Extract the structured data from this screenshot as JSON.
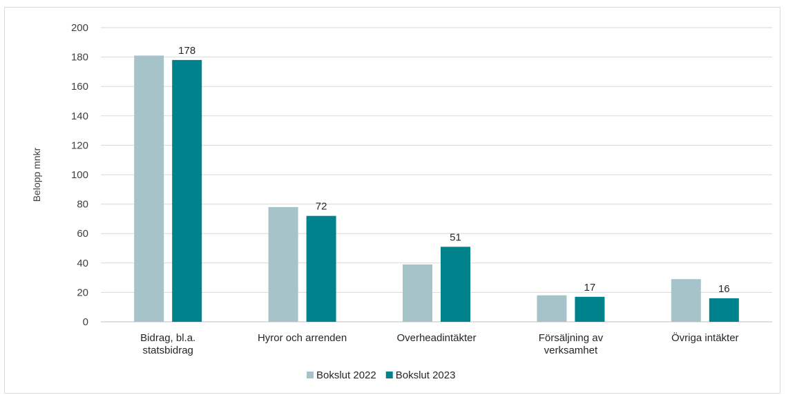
{
  "chart_data": {
    "type": "bar",
    "ylabel": "Belopp mnkr",
    "xlabel": "",
    "ylim": [
      0,
      200
    ],
    "yticks": [
      0,
      20,
      40,
      60,
      80,
      100,
      120,
      140,
      160,
      180,
      200
    ],
    "grid": true,
    "legend_position": "bottom",
    "categories": [
      [
        "Bidrag, bl.a.",
        "statsbidrag"
      ],
      [
        "Hyror och arrenden"
      ],
      [
        "Overheadintäkter"
      ],
      [
        "Försäljning av",
        "verksamhet"
      ],
      [
        "Övriga intäkter"
      ]
    ],
    "series": [
      {
        "name": "Bokslut 2022",
        "color": "#a5c3c9",
        "values": [
          181,
          78,
          39,
          18,
          29
        ],
        "show_labels": false
      },
      {
        "name": "Bokslut 2023",
        "color": "#00828c",
        "values": [
          178,
          72,
          51,
          17,
          16
        ],
        "show_labels": true
      }
    ]
  }
}
